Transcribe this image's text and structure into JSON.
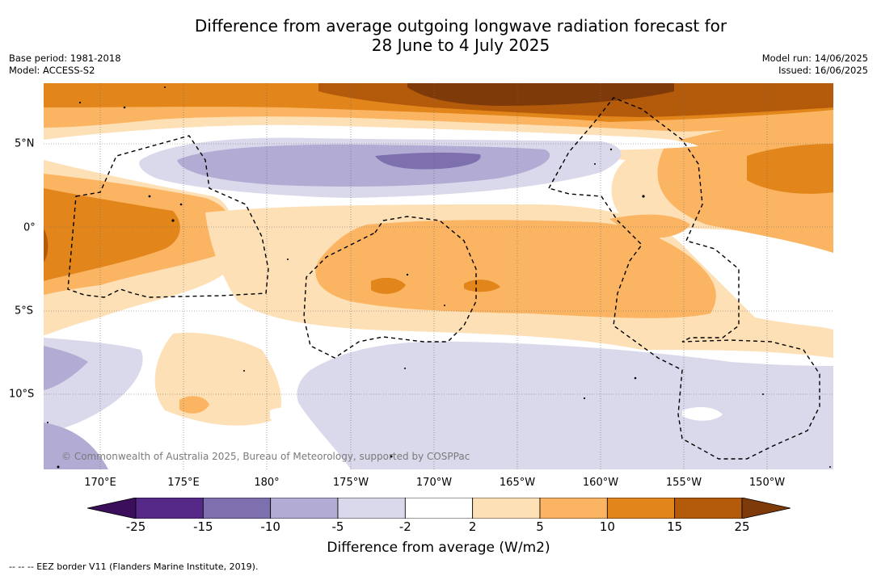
{
  "title_line1": "Difference from average outgoing longwave radiation forecast for",
  "title_line2": "28 June to 4 July 2025",
  "base_period": "Base period: 1981-2018",
  "model": "Model: ACCESS-S2",
  "model_run": "Model run: 14/06/2025",
  "issued": "Issued: 16/06/2025",
  "copyright": "© Commonwealth of Australia 2025, Bureau of Meteorology, supported by COSPPac",
  "lon_labels": [
    "170°E",
    "175°E",
    "180°",
    "175°W",
    "170°W",
    "165°W",
    "160°W",
    "155°W",
    "150°W"
  ],
  "lat_labels": [
    "5°N",
    "0°",
    "5°S",
    "10°S"
  ],
  "colorbar": {
    "ticks": [
      "-25",
      "-15",
      "-10",
      "-5",
      "-2",
      "2",
      "5",
      "10",
      "15",
      "25"
    ],
    "colors": [
      "#3b0f5c",
      "#562888",
      "#7e6fae",
      "#b2acd4",
      "#d9d9eb",
      "#ffffff",
      "#fde0b6",
      "#fbb562",
      "#e2851a",
      "#b35a0b",
      "#7f3a0a"
    ],
    "label": "Difference from average (W/m2)"
  },
  "footer": "--  --  -- EEZ border V11 (Flanders Marine Institute, 2019)."
}
